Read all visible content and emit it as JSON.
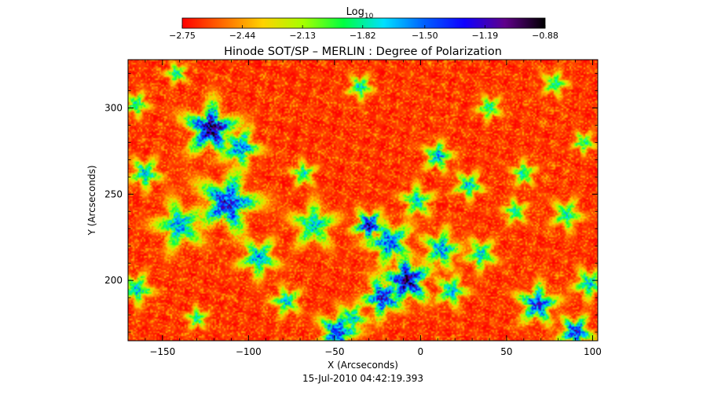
{
  "chart_data": {
    "type": "heatmap",
    "title": "Hinode SOT/SP – MERLIN : Degree of Polarization",
    "xlabel": "X (Arcseconds)",
    "ylabel": "Y (Arcseconds)",
    "timestamp": "15-Jul-2010 04:42:19.393",
    "xlim": [
      -170,
      103
    ],
    "ylim": [
      165,
      328
    ],
    "x_ticks": [
      -150,
      -100,
      -50,
      0,
      50,
      100
    ],
    "y_ticks": [
      200,
      250,
      300
    ],
    "x_tick_labels": [
      "−150",
      "−100",
      "−50",
      "0",
      "50",
      "100"
    ],
    "y_tick_labels": [
      "200",
      "250",
      "300"
    ],
    "colorbar": {
      "label_base": "Log",
      "label_sub": "10",
      "range": [
        -2.75,
        -0.88
      ],
      "tick_values": [
        -2.75,
        -2.44,
        -2.13,
        -1.82,
        -1.5,
        -1.19,
        -0.88
      ],
      "tick_labels": [
        "−2.75",
        "−2.44",
        "−2.13",
        "−1.82",
        "−1.50",
        "−1.19",
        "−0.88"
      ],
      "colors": [
        "#ff0000",
        "#ff6a00",
        "#ffd200",
        "#a6ff00",
        "#00ff40",
        "#00e0ff",
        "#0060ff",
        "#1000ff",
        "#60008a",
        "#000000"
      ]
    },
    "blobs": [
      {
        "x": -122,
        "y": 288,
        "r": 15,
        "v": -1.05
      },
      {
        "x": -105,
        "y": 277,
        "r": 12,
        "v": -1.5
      },
      {
        "x": -112,
        "y": 245,
        "r": 18,
        "v": -1.3
      },
      {
        "x": -140,
        "y": 232,
        "r": 15,
        "v": -1.6
      },
      {
        "x": -94,
        "y": 213,
        "r": 12,
        "v": -1.6
      },
      {
        "x": -165,
        "y": 195,
        "r": 10,
        "v": -1.7
      },
      {
        "x": -78,
        "y": 188,
        "r": 9,
        "v": -1.7
      },
      {
        "x": -62,
        "y": 232,
        "r": 14,
        "v": -1.7
      },
      {
        "x": -30,
        "y": 232,
        "r": 9,
        "v": -1.2
      },
      {
        "x": -18,
        "y": 222,
        "r": 14,
        "v": -1.5
      },
      {
        "x": -8,
        "y": 200,
        "r": 14,
        "v": -1.1
      },
      {
        "x": -22,
        "y": 190,
        "r": 12,
        "v": -1.3
      },
      {
        "x": -40,
        "y": 178,
        "r": 10,
        "v": -1.7
      },
      {
        "x": -48,
        "y": 170,
        "r": 12,
        "v": -1.35
      },
      {
        "x": 12,
        "y": 218,
        "r": 12,
        "v": -1.6
      },
      {
        "x": 18,
        "y": 194,
        "r": 10,
        "v": -1.7
      },
      {
        "x": 35,
        "y": 215,
        "r": 10,
        "v": -1.7
      },
      {
        "x": 68,
        "y": 186,
        "r": 12,
        "v": -1.4
      },
      {
        "x": 90,
        "y": 170,
        "r": 10,
        "v": -1.3
      },
      {
        "x": 98,
        "y": 198,
        "r": 10,
        "v": -1.7
      },
      {
        "x": 85,
        "y": 238,
        "r": 10,
        "v": -1.8
      },
      {
        "x": 55,
        "y": 240,
        "r": 8,
        "v": -1.8
      },
      {
        "x": 28,
        "y": 255,
        "r": 9,
        "v": -1.7
      },
      {
        "x": 10,
        "y": 272,
        "r": 9,
        "v": -1.6
      },
      {
        "x": 40,
        "y": 300,
        "r": 8,
        "v": -1.8
      },
      {
        "x": 78,
        "y": 314,
        "r": 8,
        "v": -1.8
      },
      {
        "x": 95,
        "y": 280,
        "r": 7,
        "v": -1.8
      },
      {
        "x": -35,
        "y": 312,
        "r": 8,
        "v": -1.75
      },
      {
        "x": -68,
        "y": 262,
        "r": 8,
        "v": -1.8
      },
      {
        "x": -160,
        "y": 262,
        "r": 10,
        "v": -1.7
      },
      {
        "x": -165,
        "y": 302,
        "r": 8,
        "v": -1.8
      },
      {
        "x": -142,
        "y": 320,
        "r": 7,
        "v": -1.8
      },
      {
        "x": -2,
        "y": 246,
        "r": 10,
        "v": -1.7
      },
      {
        "x": 60,
        "y": 262,
        "r": 8,
        "v": -1.8
      },
      {
        "x": -130,
        "y": 178,
        "r": 7,
        "v": -1.8
      }
    ]
  }
}
